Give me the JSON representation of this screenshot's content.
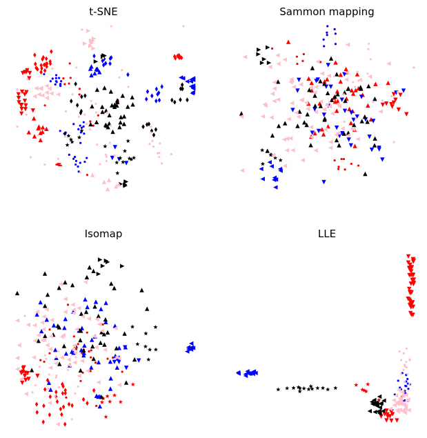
{
  "chart_data": [
    {
      "type": "scatter",
      "title": "t-SNE",
      "xlim": [
        0,
        1
      ],
      "ylim": [
        0,
        1
      ],
      "axes": "off",
      "clusters": [
        {
          "color": "red",
          "marker": "diamond",
          "cx": 0.16,
          "cy": 0.78,
          "n": 18,
          "spread": 0.035
        },
        {
          "color": "red",
          "marker": "tri-down",
          "cx": 0.04,
          "cy": 0.55,
          "n": 14,
          "spread": 0.03
        },
        {
          "color": "red",
          "marker": "tri-down",
          "cx": 0.05,
          "cy": 0.72,
          "n": 6,
          "spread": 0.02
        },
        {
          "color": "red",
          "marker": "square",
          "cx": 0.12,
          "cy": 0.38,
          "n": 10,
          "spread": 0.03
        },
        {
          "color": "red",
          "marker": "diamond",
          "cx": 0.91,
          "cy": 0.83,
          "n": 7,
          "spread": 0.015
        },
        {
          "color": "red",
          "marker": "dot",
          "cx": 0.3,
          "cy": 0.65,
          "n": 8,
          "spread": 0.06
        },
        {
          "color": "red",
          "marker": "dash",
          "cx": 0.24,
          "cy": 0.18,
          "n": 4,
          "spread": 0.005
        },
        {
          "color": "red",
          "marker": "dot",
          "cx": 0.55,
          "cy": 0.5,
          "n": 6,
          "spread": 0.15
        },
        {
          "color": "blue",
          "marker": "dot",
          "cx": 0.21,
          "cy": 0.67,
          "n": 12,
          "spread": 0.03
        },
        {
          "color": "blue",
          "marker": "tri-left",
          "cx": 0.99,
          "cy": 0.67,
          "n": 16,
          "spread": 0.03
        },
        {
          "color": "blue",
          "marker": "diamond",
          "cx": 0.52,
          "cy": 0.78,
          "n": 10,
          "spread": 0.05
        },
        {
          "color": "blue",
          "marker": "tri-up",
          "cx": 0.44,
          "cy": 0.73,
          "n": 8,
          "spread": 0.03
        },
        {
          "color": "blue",
          "marker": "dot",
          "cx": 0.36,
          "cy": 0.4,
          "n": 12,
          "spread": 0.04
        },
        {
          "color": "blue",
          "marker": "dot",
          "cx": 0.34,
          "cy": 0.2,
          "n": 10,
          "spread": 0.025
        },
        {
          "color": "blue",
          "marker": "diamond",
          "cx": 0.78,
          "cy": 0.6,
          "n": 9,
          "spread": 0.03
        },
        {
          "color": "blue",
          "marker": "tri-down",
          "cx": 0.63,
          "cy": 0.25,
          "n": 4,
          "spread": 0.04
        },
        {
          "color": "black",
          "marker": "tri-up",
          "cx": 0.55,
          "cy": 0.52,
          "n": 30,
          "spread": 0.07
        },
        {
          "color": "black",
          "marker": "diamond",
          "cx": 0.33,
          "cy": 0.52,
          "n": 8,
          "spread": 0.06
        },
        {
          "color": "black",
          "marker": "star",
          "cx": 0.62,
          "cy": 0.2,
          "n": 10,
          "spread": 0.05
        },
        {
          "color": "black",
          "marker": "diamond",
          "cx": 0.93,
          "cy": 0.6,
          "n": 8,
          "spread": 0.03
        },
        {
          "color": "black",
          "marker": "tri-right",
          "cx": 0.61,
          "cy": 0.07,
          "n": 5,
          "spread": 0.01
        },
        {
          "color": "black",
          "marker": "tri-right",
          "cx": 0.5,
          "cy": 0.8,
          "n": 4,
          "spread": 0.02
        },
        {
          "color": "black",
          "marker": "star",
          "cx": 0.3,
          "cy": 0.32,
          "n": 6,
          "spread": 0.04
        },
        {
          "color": "black",
          "marker": "diamond",
          "cx": 0.76,
          "cy": 0.4,
          "n": 6,
          "spread": 0.03
        },
        {
          "color": "pink",
          "marker": "dot",
          "cx": 0.42,
          "cy": 0.5,
          "n": 40,
          "spread": 0.22
        },
        {
          "color": "pink",
          "marker": "tri-right",
          "cx": 0.42,
          "cy": 0.92,
          "n": 8,
          "spread": 0.03
        },
        {
          "color": "pink",
          "marker": "tri-left",
          "cx": 0.13,
          "cy": 0.6,
          "n": 12,
          "spread": 0.04
        },
        {
          "color": "pink",
          "marker": "tri-up",
          "cx": 0.5,
          "cy": 0.06,
          "n": 6,
          "spread": 0.03
        },
        {
          "color": "pink",
          "marker": "dot",
          "cx": 0.8,
          "cy": 0.28,
          "n": 8,
          "spread": 0.03
        }
      ]
    },
    {
      "type": "scatter",
      "title": "Sammon mapping",
      "xlim": [
        0,
        1
      ],
      "ylim": [
        0,
        1
      ],
      "axes": "off",
      "clusters": [
        {
          "color": "red",
          "marker": "tri-up",
          "cx": 0.56,
          "cy": 0.53,
          "n": 40,
          "spread": 0.13
        },
        {
          "color": "red",
          "marker": "tri-down",
          "cx": 0.88,
          "cy": 0.52,
          "n": 10,
          "spread": 0.03
        },
        {
          "color": "red",
          "marker": "dot",
          "cx": 0.6,
          "cy": 0.15,
          "n": 8,
          "spread": 0.03
        },
        {
          "color": "red",
          "marker": "dot",
          "cx": 0.36,
          "cy": 0.82,
          "n": 6,
          "spread": 0.05
        },
        {
          "color": "blue",
          "marker": "tri-down",
          "cx": 0.55,
          "cy": 0.45,
          "n": 35,
          "spread": 0.15
        },
        {
          "color": "blue",
          "marker": "tri-left",
          "cx": 0.2,
          "cy": 0.07,
          "n": 10,
          "spread": 0.04
        },
        {
          "color": "blue",
          "marker": "dot",
          "cx": 0.5,
          "cy": 0.97,
          "n": 8,
          "spread": 0.05
        },
        {
          "color": "black",
          "marker": "tri-up",
          "cx": 0.48,
          "cy": 0.45,
          "n": 45,
          "spread": 0.15
        },
        {
          "color": "black",
          "marker": "star",
          "cx": 0.18,
          "cy": 0.2,
          "n": 6,
          "spread": 0.03
        },
        {
          "color": "black",
          "marker": "tri-right",
          "cx": 0.1,
          "cy": 0.8,
          "n": 6,
          "spread": 0.04
        },
        {
          "color": "pink",
          "marker": "tri-left",
          "cx": 0.42,
          "cy": 0.5,
          "n": 70,
          "spread": 0.18
        },
        {
          "color": "pink",
          "marker": "dot",
          "cx": 0.72,
          "cy": 0.62,
          "n": 20,
          "spread": 0.12
        }
      ]
    },
    {
      "type": "scatter",
      "title": "Isomap",
      "xlim": [
        0,
        1
      ],
      "ylim": [
        0,
        1
      ],
      "axes": "off",
      "clusters": [
        {
          "color": "red",
          "marker": "diamond",
          "cx": 0.25,
          "cy": 0.12,
          "n": 25,
          "spread": 0.09
        },
        {
          "color": "red",
          "marker": "tri-down",
          "cx": 0.05,
          "cy": 0.27,
          "n": 12,
          "spread": 0.03
        },
        {
          "color": "red",
          "marker": "dot",
          "cx": 0.35,
          "cy": 0.4,
          "n": 25,
          "spread": 0.13
        },
        {
          "color": "red",
          "marker": "star",
          "cx": 0.55,
          "cy": 0.14,
          "n": 8,
          "spread": 0.05
        },
        {
          "color": "blue",
          "marker": "tri-up",
          "cx": 0.35,
          "cy": 0.4,
          "n": 45,
          "spread": 0.15
        },
        {
          "color": "blue",
          "marker": "tri-left",
          "cx": 0.98,
          "cy": 0.43,
          "n": 8,
          "spread": 0.015
        },
        {
          "color": "blue",
          "marker": "tri-down",
          "cx": 0.6,
          "cy": 0.38,
          "n": 6,
          "spread": 0.04
        },
        {
          "color": "black",
          "marker": "tri-up",
          "cx": 0.36,
          "cy": 0.55,
          "n": 45,
          "spread": 0.18
        },
        {
          "color": "black",
          "marker": "star",
          "cx": 0.78,
          "cy": 0.45,
          "n": 8,
          "spread": 0.06
        },
        {
          "color": "black",
          "marker": "tri-right",
          "cx": 0.5,
          "cy": 0.9,
          "n": 6,
          "spread": 0.04
        },
        {
          "color": "pink",
          "marker": "tri-left",
          "cx": 0.25,
          "cy": 0.45,
          "n": 60,
          "spread": 0.18
        },
        {
          "color": "pink",
          "marker": "dot",
          "cx": 0.2,
          "cy": 0.3,
          "n": 20,
          "spread": 0.1
        }
      ]
    },
    {
      "type": "scatter",
      "title": "LLE",
      "xlim": [
        0,
        1
      ],
      "ylim": [
        0,
        1
      ],
      "axes": "off",
      "clusters": [
        {
          "color": "red",
          "marker": "tri-down",
          "cx": 0.985,
          "cy": 0.78,
          "n": 40,
          "spread": 0.01,
          "stretch": 0.35
        },
        {
          "color": "red",
          "marker": "tri-down",
          "cx": 0.86,
          "cy": 0.05,
          "n": 12,
          "spread": 0.025
        },
        {
          "color": "red",
          "marker": "star",
          "cx": 0.72,
          "cy": 0.17,
          "n": 6,
          "spread": 0.04
        },
        {
          "color": "blue",
          "marker": "tri-left",
          "cx": 0.05,
          "cy": 0.29,
          "n": 12,
          "spread": 0.006,
          "stretchX": 0.05
        },
        {
          "color": "blue",
          "marker": "dot",
          "cx": 0.94,
          "cy": 0.2,
          "n": 20,
          "spread": 0.02,
          "stretch": 0.15
        },
        {
          "color": "black",
          "marker": "star",
          "cx": 0.4,
          "cy": 0.2,
          "n": 14,
          "spread": 0.01,
          "stretchX": 0.2
        },
        {
          "color": "black",
          "marker": "tri-left",
          "cx": 0.8,
          "cy": 0.11,
          "n": 20,
          "spread": 0.03
        },
        {
          "color": "pink",
          "marker": "tri-left",
          "cx": 0.92,
          "cy": 0.12,
          "n": 30,
          "spread": 0.03
        },
        {
          "color": "pink",
          "marker": "dot",
          "cx": 0.95,
          "cy": 0.35,
          "n": 15,
          "spread": 0.02,
          "stretch": 0.2
        }
      ]
    }
  ]
}
